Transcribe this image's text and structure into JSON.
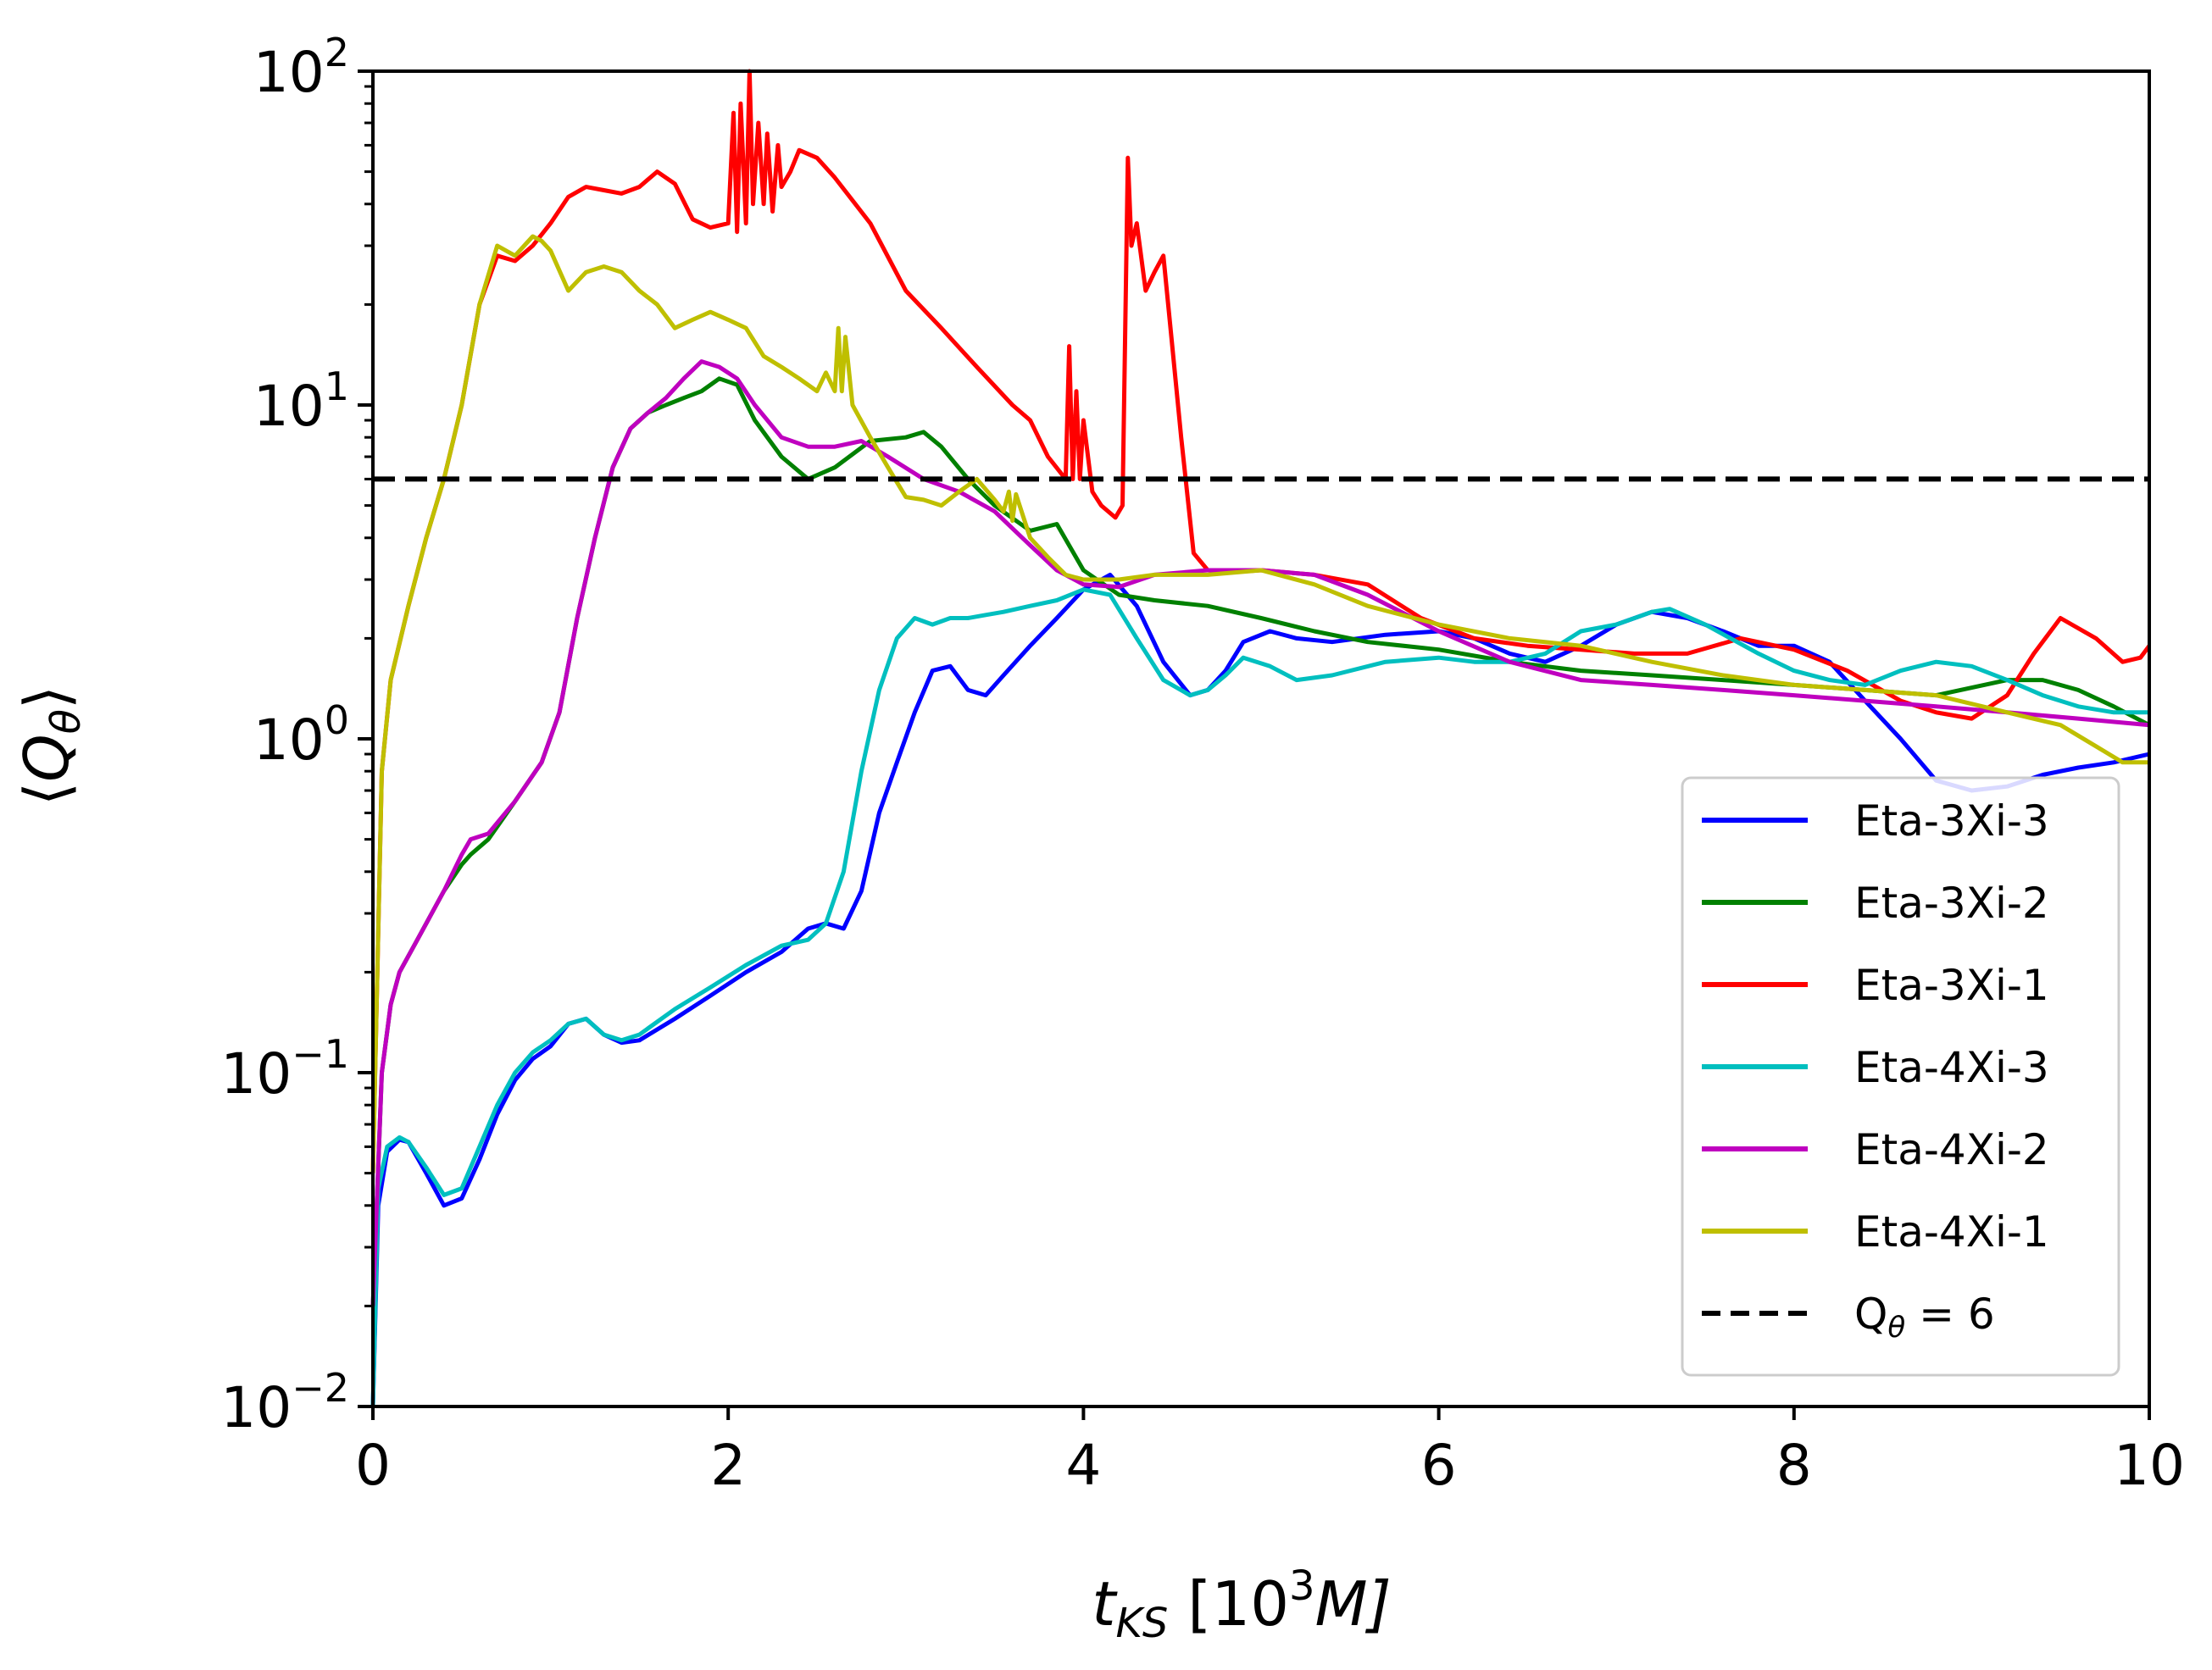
{
  "chart_data": {
    "type": "line",
    "xlabel_main": "t",
    "xlabel_sub": "KS",
    "xlabel_unit_open": " [10",
    "xlabel_unit_exp": "3",
    "xlabel_unit_close": "M]",
    "ylabel_open": "⟨",
    "ylabel_main": "Q",
    "ylabel_sub": "θ",
    "ylabel_close": "⟩",
    "xlim": [
      0,
      10
    ],
    "ylim": [
      0.01,
      100
    ],
    "yscale": "log",
    "xticks": [
      {
        "value": 0,
        "label": "0"
      },
      {
        "value": 2,
        "label": "2"
      },
      {
        "value": 4,
        "label": "4"
      },
      {
        "value": 6,
        "label": "6"
      },
      {
        "value": 8,
        "label": "8"
      },
      {
        "value": 10,
        "label": "10"
      }
    ],
    "yticks": [
      {
        "value": 100,
        "base": "10",
        "exp": "2"
      },
      {
        "value": 10,
        "base": "10",
        "exp": "1"
      },
      {
        "value": 1,
        "base": "10",
        "exp": "0"
      },
      {
        "value": 0.1,
        "base": "10",
        "exp": "−1"
      },
      {
        "value": 0.01,
        "base": "10",
        "exp": "−2"
      }
    ],
    "legend_position": "lower-right",
    "series": [
      {
        "name": "Eta-3Xi-3",
        "color": "#0000ff",
        "x": [
          0,
          0.03,
          0.08,
          0.15,
          0.2,
          0.3,
          0.4,
          0.5,
          0.6,
          0.7,
          0.8,
          0.9,
          1.0,
          1.1,
          1.2,
          1.3,
          1.4,
          1.5,
          1.7,
          1.9,
          2.1,
          2.3,
          2.45,
          2.55,
          2.65,
          2.75,
          2.85,
          2.95,
          3.05,
          3.15,
          3.25,
          3.35,
          3.45,
          3.55,
          3.7,
          3.85,
          4.0,
          4.15,
          4.3,
          4.45,
          4.6,
          4.7,
          4.8,
          4.9,
          5.05,
          5.2,
          5.4,
          5.7,
          6.0,
          6.2,
          6.4,
          6.6,
          6.8,
          7.0,
          7.2,
          7.4,
          7.6,
          7.8,
          8.0,
          8.2,
          8.4,
          8.6,
          8.8,
          9.0,
          9.2,
          9.4,
          9.6,
          9.8,
          10.0
        ],
        "y": [
          0.01,
          0.04,
          0.058,
          0.063,
          0.062,
          0.05,
          0.04,
          0.042,
          0.055,
          0.075,
          0.095,
          0.11,
          0.12,
          0.14,
          0.145,
          0.13,
          0.123,
          0.125,
          0.145,
          0.17,
          0.2,
          0.23,
          0.27,
          0.28,
          0.27,
          0.35,
          0.6,
          0.85,
          1.2,
          1.6,
          1.65,
          1.4,
          1.35,
          1.55,
          1.9,
          2.3,
          2.8,
          3.1,
          2.5,
          1.7,
          1.35,
          1.4,
          1.6,
          1.95,
          2.1,
          2.0,
          1.95,
          2.05,
          2.1,
          2.0,
          1.8,
          1.7,
          1.9,
          2.2,
          2.4,
          2.3,
          2.1,
          1.9,
          1.9,
          1.7,
          1.3,
          1.0,
          0.75,
          0.7,
          0.72,
          0.78,
          0.82,
          0.85,
          0.9
        ]
      },
      {
        "name": "Eta-3Xi-2",
        "color": "#008000",
        "x": [
          0,
          0.05,
          0.1,
          0.15,
          0.25,
          0.4,
          0.5,
          0.55,
          0.65,
          0.8,
          0.95,
          1.05,
          1.15,
          1.25,
          1.35,
          1.45,
          1.55,
          1.65,
          1.75,
          1.85,
          1.95,
          2.05,
          2.15,
          2.3,
          2.45,
          2.6,
          2.8,
          3.0,
          3.1,
          3.2,
          3.35,
          3.5,
          3.7,
          3.85,
          4.0,
          4.2,
          4.4,
          4.7,
          5.0,
          5.3,
          5.6,
          6.0,
          6.4,
          6.8,
          7.2,
          7.6,
          8.0,
          8.4,
          8.8,
          9.2,
          9.4,
          9.6,
          9.8,
          10.0
        ],
        "y": [
          0.02,
          0.1,
          0.16,
          0.2,
          0.25,
          0.35,
          0.42,
          0.45,
          0.5,
          0.65,
          0.85,
          1.2,
          2.3,
          4.0,
          6.5,
          8.5,
          9.5,
          10.0,
          10.5,
          11.0,
          12.0,
          11.5,
          9.0,
          7.0,
          6.0,
          6.5,
          7.8,
          8.0,
          8.3,
          7.5,
          6.0,
          5.0,
          4.2,
          4.4,
          3.2,
          2.7,
          2.6,
          2.5,
          2.3,
          2.1,
          1.95,
          1.85,
          1.7,
          1.6,
          1.55,
          1.5,
          1.45,
          1.4,
          1.35,
          1.5,
          1.5,
          1.4,
          1.25,
          1.1
        ]
      },
      {
        "name": "Eta-3Xi-1",
        "color": "#ff0000",
        "x": [
          0,
          0.05,
          0.1,
          0.2,
          0.3,
          0.4,
          0.5,
          0.6,
          0.7,
          0.8,
          0.9,
          1.0,
          1.1,
          1.2,
          1.3,
          1.4,
          1.5,
          1.6,
          1.7,
          1.8,
          1.9,
          2.0,
          2.03,
          2.05,
          2.07,
          2.1,
          2.12,
          2.14,
          2.17,
          2.2,
          2.22,
          2.25,
          2.28,
          2.3,
          2.35,
          2.4,
          2.5,
          2.6,
          2.8,
          3.0,
          3.2,
          3.4,
          3.6,
          3.7,
          3.8,
          3.9,
          3.92,
          3.94,
          3.96,
          3.98,
          4.0,
          4.05,
          4.1,
          4.18,
          4.22,
          4.25,
          4.27,
          4.3,
          4.35,
          4.4,
          4.45,
          4.5,
          4.55,
          4.62,
          4.7,
          4.8,
          5.0,
          5.3,
          5.6,
          5.9,
          6.2,
          6.5,
          6.8,
          7.1,
          7.4,
          7.7,
          8.0,
          8.3,
          8.6,
          8.8,
          9.0,
          9.2,
          9.35,
          9.5,
          9.7,
          9.85,
          9.95,
          10.0
        ],
        "y": [
          0.05,
          0.8,
          1.5,
          2.5,
          4.0,
          6.0,
          10.0,
          20.0,
          28.0,
          27.0,
          30.0,
          35.0,
          42.0,
          45.0,
          44.0,
          43.0,
          45.0,
          50.0,
          46.0,
          36.0,
          34.0,
          35.0,
          75.0,
          33.0,
          80.0,
          35.0,
          100.0,
          40.0,
          70.0,
          40.0,
          65.0,
          38.0,
          60.0,
          45.0,
          50.0,
          58.0,
          55.0,
          48.0,
          35.0,
          22.0,
          17.0,
          13.0,
          10.0,
          9.0,
          7.0,
          6.0,
          15.0,
          6.0,
          11.0,
          6.0,
          9.0,
          5.5,
          5.0,
          4.6,
          5.0,
          55.0,
          30.0,
          35.0,
          22.0,
          25.0,
          28.0,
          15.0,
          8.0,
          3.6,
          3.2,
          3.15,
          3.2,
          3.1,
          2.9,
          2.3,
          2.0,
          1.9,
          1.85,
          1.8,
          1.8,
          2.0,
          1.85,
          1.6,
          1.3,
          1.2,
          1.15,
          1.35,
          1.8,
          2.3,
          2.0,
          1.7,
          1.75,
          1.9
        ]
      },
      {
        "name": "Eta-4Xi-3",
        "color": "#00bfbf",
        "x": [
          0,
          0.03,
          0.08,
          0.15,
          0.2,
          0.3,
          0.4,
          0.5,
          0.6,
          0.7,
          0.8,
          0.9,
          1.0,
          1.1,
          1.2,
          1.3,
          1.4,
          1.5,
          1.7,
          1.9,
          2.1,
          2.3,
          2.45,
          2.55,
          2.65,
          2.75,
          2.85,
          2.95,
          3.05,
          3.15,
          3.25,
          3.35,
          3.45,
          3.55,
          3.7,
          3.85,
          4.0,
          4.15,
          4.3,
          4.45,
          4.6,
          4.7,
          4.8,
          4.9,
          5.05,
          5.2,
          5.4,
          5.7,
          6.0,
          6.2,
          6.4,
          6.6,
          6.8,
          7.0,
          7.2,
          7.3,
          7.5,
          7.8,
          8.0,
          8.2,
          8.4,
          8.6,
          8.8,
          9.0,
          9.2,
          9.4,
          9.6,
          9.8,
          10.0
        ],
        "y": [
          0.01,
          0.045,
          0.06,
          0.064,
          0.062,
          0.052,
          0.043,
          0.045,
          0.06,
          0.08,
          0.1,
          0.115,
          0.125,
          0.14,
          0.145,
          0.13,
          0.125,
          0.13,
          0.155,
          0.18,
          0.21,
          0.24,
          0.25,
          0.28,
          0.4,
          0.8,
          1.4,
          2.0,
          2.3,
          2.2,
          2.3,
          2.3,
          2.35,
          2.4,
          2.5,
          2.6,
          2.8,
          2.7,
          2.0,
          1.5,
          1.35,
          1.4,
          1.55,
          1.75,
          1.65,
          1.5,
          1.55,
          1.7,
          1.75,
          1.7,
          1.7,
          1.8,
          2.1,
          2.2,
          2.4,
          2.45,
          2.2,
          1.8,
          1.6,
          1.5,
          1.45,
          1.6,
          1.7,
          1.65,
          1.5,
          1.35,
          1.25,
          1.2,
          1.2
        ]
      },
      {
        "name": "Eta-4Xi-2",
        "color": "#bf00bf",
        "x": [
          0,
          0.05,
          0.1,
          0.15,
          0.25,
          0.4,
          0.5,
          0.55,
          0.65,
          0.8,
          0.95,
          1.05,
          1.15,
          1.25,
          1.35,
          1.45,
          1.55,
          1.65,
          1.75,
          1.85,
          1.95,
          2.05,
          2.15,
          2.3,
          2.45,
          2.6,
          2.75,
          2.9,
          3.1,
          3.3,
          3.5,
          3.7,
          3.85,
          4.0,
          4.2,
          4.4,
          4.7,
          5.0,
          5.3,
          5.6,
          6.0,
          6.4,
          6.8,
          7.2,
          7.6,
          8.0,
          8.4,
          8.8,
          9.2,
          9.6,
          10.0
        ],
        "y": [
          0.02,
          0.1,
          0.16,
          0.2,
          0.25,
          0.35,
          0.45,
          0.5,
          0.52,
          0.65,
          0.85,
          1.2,
          2.3,
          4.0,
          6.5,
          8.5,
          9.5,
          10.5,
          12.0,
          13.5,
          13.0,
          12.0,
          10.0,
          8.0,
          7.5,
          7.5,
          7.8,
          7.0,
          6.0,
          5.5,
          4.8,
          3.8,
          3.2,
          2.9,
          2.85,
          3.1,
          3.2,
          3.2,
          3.1,
          2.7,
          2.1,
          1.7,
          1.5,
          1.45,
          1.4,
          1.35,
          1.3,
          1.25,
          1.2,
          1.15,
          1.1
        ]
      },
      {
        "name": "Eta-4Xi-1",
        "color": "#bfbf00",
        "x": [
          0,
          0.05,
          0.1,
          0.2,
          0.3,
          0.4,
          0.5,
          0.6,
          0.7,
          0.8,
          0.9,
          0.95,
          1.0,
          1.1,
          1.2,
          1.3,
          1.4,
          1.5,
          1.6,
          1.7,
          1.8,
          1.9,
          2.0,
          2.1,
          2.2,
          2.3,
          2.4,
          2.5,
          2.55,
          2.6,
          2.62,
          2.64,
          2.66,
          2.7,
          2.8,
          2.9,
          3.0,
          3.1,
          3.2,
          3.3,
          3.4,
          3.5,
          3.55,
          3.58,
          3.6,
          3.62,
          3.7,
          3.8,
          3.9,
          4.0,
          4.2,
          4.4,
          4.7,
          5.0,
          5.3,
          5.6,
          6.0,
          6.4,
          6.8,
          7.2,
          7.6,
          8.0,
          8.4,
          8.8,
          9.2,
          9.5,
          9.7,
          9.85,
          10.0
        ],
        "y": [
          0.05,
          0.8,
          1.5,
          2.5,
          4.0,
          6.0,
          10.0,
          20.0,
          30.0,
          28.0,
          32.0,
          31.0,
          29.0,
          22.0,
          25.0,
          26.0,
          25.0,
          22.0,
          20.0,
          17.0,
          18.0,
          19.0,
          18.0,
          17.0,
          14.0,
          13.0,
          12.0,
          11.0,
          12.5,
          11.0,
          17.0,
          11.0,
          16.0,
          10.0,
          8.0,
          6.5,
          5.3,
          5.2,
          5.0,
          5.5,
          6.0,
          5.2,
          4.8,
          5.5,
          4.5,
          5.4,
          4.0,
          3.5,
          3.1,
          3.0,
          3.0,
          3.1,
          3.1,
          3.2,
          2.9,
          2.5,
          2.2,
          2.0,
          1.9,
          1.7,
          1.55,
          1.45,
          1.4,
          1.35,
          1.2,
          1.1,
          0.95,
          0.85,
          0.85
        ]
      }
    ],
    "reference_line": {
      "label_main": "Q",
      "label_sub": "θ",
      "label_rest": " = 6",
      "value": 6,
      "color": "#000000",
      "style": "dashed"
    }
  }
}
